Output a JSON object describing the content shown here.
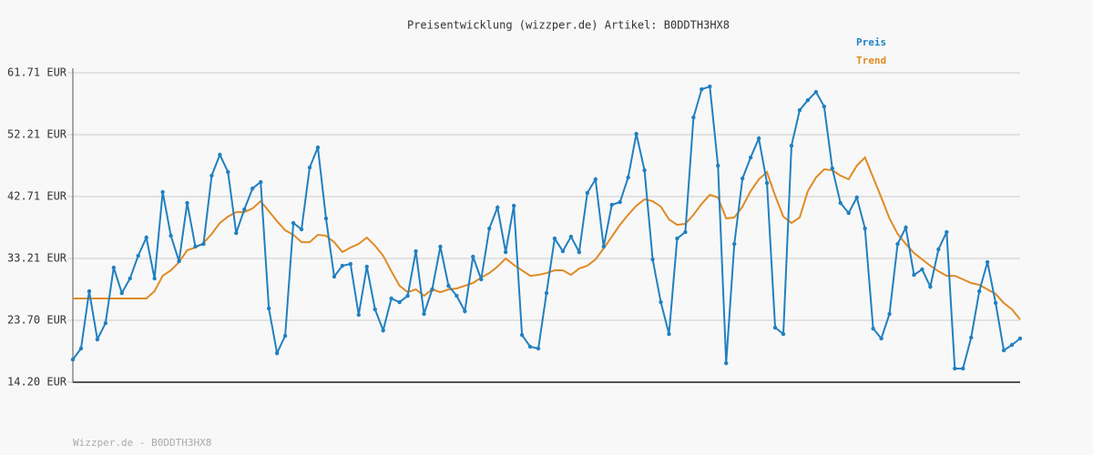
{
  "chart_data": {
    "type": "line",
    "title": "Preisentwicklung (wizzper.de) Artikel: B0DDTH3HX8",
    "footer": "Wizzper.de - B0DDTH3HX8",
    "categories": [
      null,
      null,
      null,
      null,
      null,
      null,
      null,
      null,
      null,
      null,
      null,
      null,
      null,
      null,
      null,
      null,
      null,
      null,
      null,
      null,
      null,
      null,
      null,
      null,
      null,
      null,
      null,
      null,
      null,
      null,
      null,
      null,
      null,
      null,
      null,
      null,
      null,
      null,
      null,
      null,
      null,
      null,
      null,
      null,
      null,
      null,
      null,
      null,
      null,
      null,
      null,
      null,
      null,
      null,
      null,
      null,
      null,
      null,
      null,
      null,
      null,
      null,
      null,
      null,
      null,
      null,
      null,
      null,
      null,
      null,
      null,
      null,
      null,
      null,
      null,
      null,
      null,
      null,
      null,
      null,
      null,
      null,
      null,
      null,
      null,
      null,
      null,
      null,
      null,
      null,
      null,
      null,
      null,
      null,
      null,
      null,
      null,
      null,
      null,
      null,
      null,
      null,
      null,
      null,
      null,
      null,
      null,
      null,
      null,
      null,
      null,
      null,
      null,
      null,
      null,
      null,
      null
    ],
    "series": [
      {
        "name": "Preis",
        "color": "#2180c0",
        "markers": true,
        "values": [
          17.69,
          19.37,
          28.17,
          20.77,
          23.28,
          31.8,
          27.89,
          30.13,
          33.62,
          36.41,
          30.13,
          43.4,
          36.69,
          32.78,
          41.72,
          35.02,
          35.43,
          45.92,
          49.13,
          46.47,
          37.11,
          40.74,
          43.95,
          44.94,
          25.52,
          18.67,
          21.32,
          38.65,
          37.67,
          47.17,
          50.25,
          39.35,
          30.41,
          32.08,
          32.36,
          24.54,
          31.94,
          25.38,
          22.16,
          27.06,
          26.49,
          27.47,
          34.32,
          24.68,
          28.45,
          35.02,
          29.01,
          27.47,
          25.1,
          33.48,
          29.99,
          37.81,
          41.02,
          34.18,
          41.3,
          21.46,
          19.65,
          19.37,
          27.89,
          36.27,
          34.32,
          36.55,
          34.18,
          43.26,
          45.36,
          35.02,
          41.44,
          41.86,
          45.64,
          52.34,
          46.75,
          33.06,
          26.49,
          21.6,
          36.27,
          37.25,
          54.85,
          59.18,
          59.6,
          47.45,
          17.13,
          35.43,
          45.49,
          48.71,
          51.64,
          44.79,
          22.58,
          21.6,
          50.52,
          55.97,
          57.51,
          58.77,
          56.53,
          47.03,
          41.72,
          40.18,
          42.56,
          37.81,
          22.44,
          20.91,
          24.68,
          35.43,
          37.95,
          30.68,
          31.52,
          28.87,
          34.6,
          37.25,
          16.3,
          16.3,
          21.05,
          28.17,
          32.64,
          26.36,
          19.09,
          19.93,
          20.91
        ]
      },
      {
        "name": "Trend",
        "color": "#e08a24",
        "markers": false,
        "values": [
          27.06,
          27.06,
          27.06,
          27.06,
          27.06,
          27.06,
          27.06,
          27.06,
          27.06,
          27.06,
          28.17,
          30.54,
          31.38,
          32.64,
          34.46,
          34.88,
          35.57,
          36.97,
          38.65,
          39.63,
          40.32,
          40.32,
          40.88,
          42.0,
          40.46,
          38.93,
          37.53,
          36.83,
          35.71,
          35.71,
          36.83,
          36.69,
          35.71,
          34.18,
          34.88,
          35.43,
          36.41,
          35.16,
          33.62,
          31.24,
          29.01,
          28.03,
          28.45,
          27.47,
          28.45,
          28.03,
          28.45,
          28.59,
          29.01,
          29.43,
          30.27,
          30.96,
          31.94,
          33.2,
          32.22,
          31.38,
          30.54,
          30.68,
          30.96,
          31.38,
          31.38,
          30.68,
          31.66,
          32.08,
          33.06,
          34.74,
          36.55,
          38.37,
          39.91,
          41.3,
          42.28,
          42.0,
          41.16,
          39.21,
          38.37,
          38.51,
          39.91,
          41.58,
          42.98,
          42.56,
          39.35,
          39.49,
          41.16,
          43.54,
          45.36,
          46.47,
          42.84,
          39.63,
          38.65,
          39.49,
          43.54,
          45.64,
          46.89,
          46.75,
          45.92,
          45.36,
          47.45,
          48.71,
          45.64,
          42.56,
          39.35,
          36.97,
          35.43,
          34.04,
          33.06,
          32.08,
          31.24,
          30.54,
          30.54,
          29.99,
          29.43,
          29.15,
          28.45,
          27.75,
          26.36,
          25.38,
          23.84
        ]
      }
    ],
    "ylim": [
      14.2,
      61.71
    ],
    "yticks": [
      {
        "value": 14.2,
        "label": "14.20 EUR"
      },
      {
        "value": 23.7,
        "label": "23.70 EUR"
      },
      {
        "value": 33.21,
        "label": "33.21 EUR"
      },
      {
        "value": 42.71,
        "label": "42.71 EUR"
      },
      {
        "value": 52.21,
        "label": "52.21 EUR"
      },
      {
        "value": 61.71,
        "label": "61.71 EUR"
      }
    ],
    "grid": true,
    "legend": "top-right"
  }
}
